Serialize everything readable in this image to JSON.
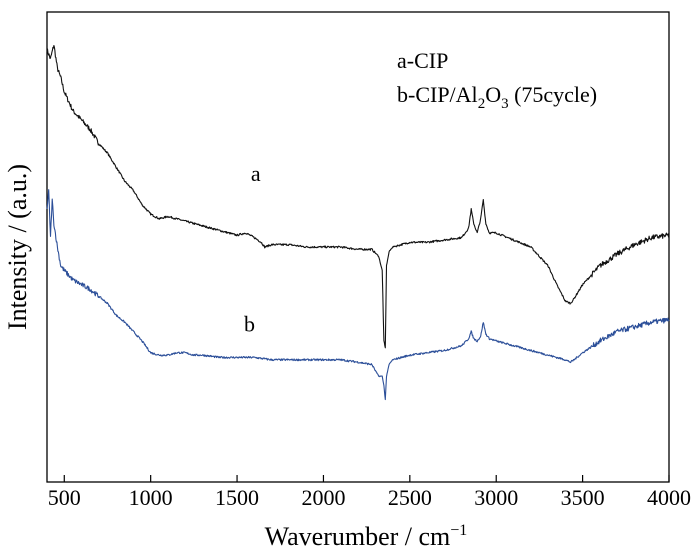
{
  "chart_data": {
    "type": "line",
    "title": "",
    "xlabel": "Waverumber / cm⁻¹",
    "xlabel_main": "Waverumber / cm",
    "xlabel_sup": "−1",
    "ylabel": "Intensity / (a.u.)",
    "xlim": [
      400,
      4000
    ],
    "ylim": [
      0,
      100
    ],
    "x_ticks": [
      500,
      1000,
      1500,
      2000,
      2500,
      3000,
      3500,
      4000
    ],
    "x_tick_labels": [
      "500",
      "1000",
      "1500",
      "2000",
      "2500",
      "3000",
      "3500",
      "4000"
    ],
    "y_tick_labels_shown": false,
    "legend": {
      "position": "top-right",
      "entries": [
        {
          "text": "a-CIP"
        },
        {
          "parts": [
            "b-CIP/Al",
            "2",
            "O",
            "3",
            " (75cycle)"
          ]
        }
      ]
    },
    "series": [
      {
        "name": "a",
        "label": "a",
        "label_x": 1580,
        "label_y": 64,
        "color": "#111111",
        "x": [
          400,
          420,
          440,
          460,
          480,
          500,
          550,
          600,
          650,
          700,
          750,
          800,
          850,
          900,
          950,
          1000,
          1050,
          1100,
          1150,
          1200,
          1250,
          1300,
          1350,
          1400,
          1450,
          1500,
          1550,
          1600,
          1640,
          1660,
          1700,
          1750,
          1800,
          1900,
          2000,
          2100,
          2200,
          2280,
          2320,
          2340,
          2350,
          2358,
          2365,
          2380,
          2400,
          2500,
          2600,
          2700,
          2800,
          2840,
          2855,
          2870,
          2890,
          2910,
          2925,
          2940,
          2960,
          3000,
          3100,
          3200,
          3300,
          3350,
          3400,
          3430,
          3450,
          3500,
          3600,
          3700,
          3800,
          3900,
          4000
        ],
        "values": [
          92,
          90,
          93,
          88,
          86,
          83,
          79,
          77,
          75,
          72,
          70,
          67,
          64,
          62,
          59,
          57,
          56,
          56.5,
          56,
          55.5,
          55,
          54.5,
          54,
          53.5,
          53,
          52.5,
          53,
          52,
          51,
          50,
          50.5,
          50.5,
          50.5,
          50,
          50,
          50,
          49.5,
          49.5,
          48,
          45,
          30,
          28.5,
          46,
          49,
          50,
          51,
          51,
          51.5,
          52,
          54,
          58,
          55,
          53,
          56,
          60,
          55,
          53,
          53,
          51.5,
          50,
          46,
          42,
          38.5,
          38,
          39,
          42,
          46,
          48.5,
          50.5,
          52,
          52.5
        ]
      },
      {
        "name": "b",
        "label": "b",
        "label_x": 1540,
        "label_y": 32,
        "color": "#2c4f99",
        "x": [
          400,
          410,
          420,
          430,
          440,
          460,
          480,
          500,
          550,
          600,
          650,
          700,
          750,
          800,
          850,
          900,
          950,
          1000,
          1050,
          1100,
          1150,
          1200,
          1250,
          1300,
          1400,
          1500,
          1600,
          1700,
          1800,
          1900,
          2000,
          2100,
          2200,
          2280,
          2320,
          2340,
          2350,
          2358,
          2365,
          2380,
          2400,
          2500,
          2600,
          2700,
          2800,
          2840,
          2855,
          2870,
          2890,
          2910,
          2925,
          2940,
          2960,
          3000,
          3100,
          3200,
          3300,
          3350,
          3400,
          3430,
          3450,
          3500,
          3600,
          3700,
          3800,
          3900,
          4000
        ],
        "values": [
          58,
          62,
          52,
          60,
          55,
          50,
          46,
          45,
          43,
          42,
          41,
          39.5,
          38,
          35.5,
          34,
          32,
          30,
          27.5,
          27,
          27,
          27.5,
          27.5,
          27,
          27,
          26.5,
          26.5,
          26.5,
          26,
          26,
          26,
          26,
          26,
          25.5,
          25,
          22.5,
          22.5,
          20.5,
          17.5,
          22.5,
          25,
          26,
          27,
          27.5,
          28,
          29,
          30.5,
          32,
          30.5,
          30,
          31,
          34,
          31.5,
          30.5,
          30,
          29,
          28,
          27,
          26.5,
          26,
          25.5,
          26,
          27.5,
          30,
          32,
          33,
          34,
          34.5
        ]
      }
    ]
  }
}
